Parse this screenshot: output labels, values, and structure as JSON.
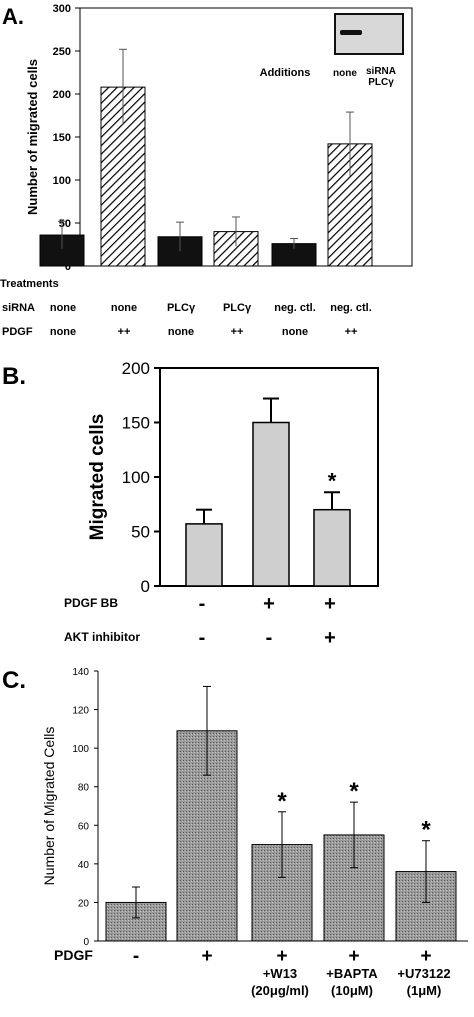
{
  "chart_data": [
    {
      "type": "bar",
      "panel_label": "A.",
      "ylabel": "Number of migrated cells",
      "ylim": [
        0,
        300
      ],
      "yticks": [
        0,
        50,
        100,
        150,
        200,
        250,
        300
      ],
      "categories": [
        "1",
        "2",
        "3",
        "4",
        "5",
        "6"
      ],
      "values": [
        36,
        208,
        34,
        40,
        26,
        142
      ],
      "errors": [
        16,
        44,
        17,
        17,
        6,
        37
      ],
      "fill": [
        "solid",
        "hatch",
        "solid",
        "hatch",
        "solid",
        "hatch"
      ],
      "treatments_label": "Treatments",
      "rows": [
        {
          "label": "siRNA",
          "values": [
            "none",
            "none",
            "PLCγ",
            "PLCγ",
            "neg. ctl.",
            "neg. ctl."
          ]
        },
        {
          "label": "PDGF",
          "values": [
            "none",
            "++",
            "none",
            "++",
            "none",
            "++"
          ]
        }
      ],
      "inset": {
        "title": "Additions",
        "lanes": [
          "none",
          "siRNA",
          "PLCγ"
        ]
      }
    },
    {
      "type": "bar",
      "panel_label": "B.",
      "ylabel": "Migrated cells",
      "ylim": [
        0,
        200
      ],
      "yticks": [
        0,
        50,
        100,
        150,
        200
      ],
      "categories": [
        "1",
        "2",
        "3"
      ],
      "values": [
        57,
        150,
        70
      ],
      "errors": [
        13,
        22,
        16
      ],
      "significance": [
        "",
        "",
        "*"
      ],
      "rows": [
        {
          "label": "PDGF BB",
          "values": [
            "-",
            "+",
            "+"
          ]
        },
        {
          "label": "AKT  inhibitor",
          "values": [
            "-",
            "-",
            "+"
          ]
        }
      ]
    },
    {
      "type": "bar",
      "panel_label": "C.",
      "ylabel": "Number of Migrated Cells",
      "ylim": [
        0,
        140
      ],
      "yticks": [
        0,
        20,
        40,
        60,
        80,
        100,
        120,
        140
      ],
      "categories": [
        "1",
        "2",
        "3",
        "4",
        "5"
      ],
      "values": [
        20,
        109,
        50,
        55,
        36
      ],
      "errors": [
        8,
        23,
        17,
        17,
        16
      ],
      "significance": [
        "",
        "",
        "*",
        "*",
        "*"
      ],
      "rows": [
        {
          "label": "PDGF",
          "values": [
            "-",
            "+",
            "+",
            "+",
            "+"
          ]
        }
      ],
      "sublabels": [
        [],
        [],
        [
          "+W13",
          "(20μg/ml)"
        ],
        [
          "+BAPTA",
          "(10μM)"
        ],
        [
          "+U73122",
          "(1μM)"
        ]
      ]
    }
  ]
}
